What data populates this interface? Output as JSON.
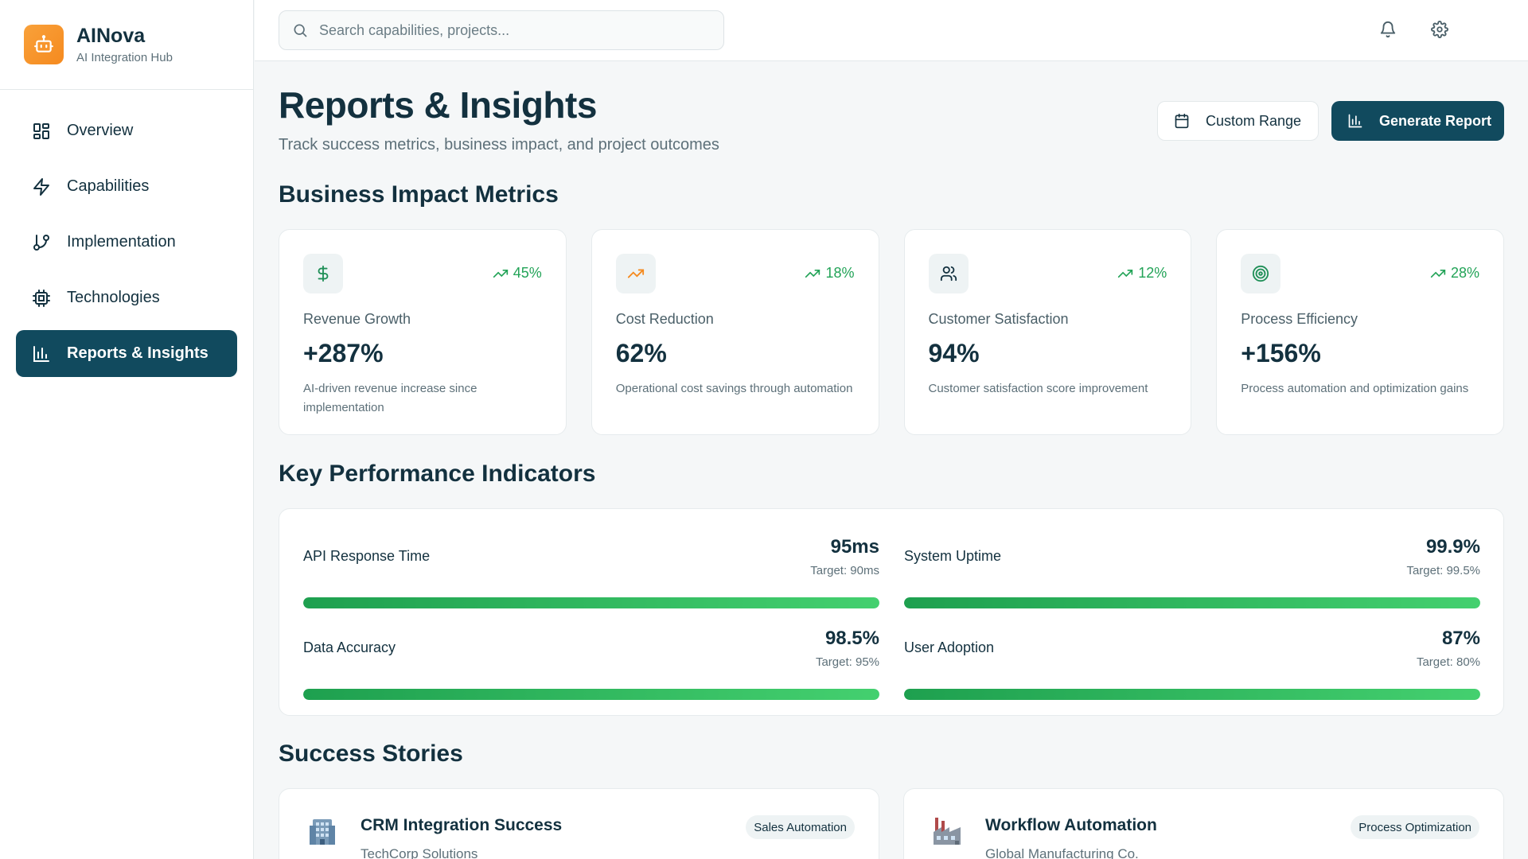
{
  "brand": {
    "name": "AINova",
    "subtitle": "AI Integration Hub",
    "logo_icon": "robot-icon",
    "accent": "#f7941d"
  },
  "nav": {
    "items": [
      {
        "label": "Overview",
        "icon": "grid-icon"
      },
      {
        "label": "Capabilities",
        "icon": "lightning-icon"
      },
      {
        "label": "Implementation",
        "icon": "git-branch-icon"
      },
      {
        "label": "Technologies",
        "icon": "cpu-icon"
      },
      {
        "label": "Reports & Insights",
        "icon": "bar-chart-icon",
        "active": true
      }
    ],
    "active_color": "#114a5e"
  },
  "topbar": {
    "search_placeholder": "Search capabilities, projects...",
    "icons": [
      "bell-icon",
      "gear-icon"
    ]
  },
  "header": {
    "title": "Reports & Insights",
    "subtitle": "Track success metrics, business impact, and project outcomes",
    "custom_range_label": "Custom Range",
    "generate_label": "Generate Report"
  },
  "metrics": {
    "section_title": "Business Impact Metrics",
    "cards": [
      {
        "icon": "dollar-icon",
        "trend": "45%",
        "label": "Revenue Growth",
        "value": "+287%",
        "desc": "AI-driven revenue increase since implementation"
      },
      {
        "icon": "trending-up-icon",
        "trend": "18%",
        "label": "Cost Reduction",
        "value": "62%",
        "desc": "Operational cost savings through automation"
      },
      {
        "icon": "users-icon",
        "trend": "12%",
        "label": "Customer Satisfaction",
        "value": "94%",
        "desc": "Customer satisfaction score improvement"
      },
      {
        "icon": "target-icon",
        "trend": "28%",
        "label": "Process Efficiency",
        "value": "+156%",
        "desc": "Process automation and optimization gains"
      }
    ],
    "trend_color": "#22a357"
  },
  "kpis": {
    "section_title": "Key Performance Indicators",
    "items": [
      {
        "label": "API Response Time",
        "value": "95ms",
        "target": "Target: 90ms",
        "progress": 1.0
      },
      {
        "label": "System Uptime",
        "value": "99.9%",
        "target": "Target: 99.5%",
        "progress": 1.0
      },
      {
        "label": "Data Accuracy",
        "value": "98.5%",
        "target": "Target: 95%",
        "progress": 1.0
      },
      {
        "label": "User Adoption",
        "value": "87%",
        "target": "Target: 80%",
        "progress": 1.0
      }
    ],
    "bar_color": "#22a357"
  },
  "stories": {
    "section_title": "Success Stories",
    "items": [
      {
        "icon": "office-building-icon",
        "title": "CRM Integration Success",
        "company": "TechCorp Solutions",
        "tag": "Sales Automation"
      },
      {
        "icon": "factory-icon",
        "title": "Workflow Automation",
        "company": "Global Manufacturing Co.",
        "tag": "Process Optimization"
      }
    ]
  }
}
